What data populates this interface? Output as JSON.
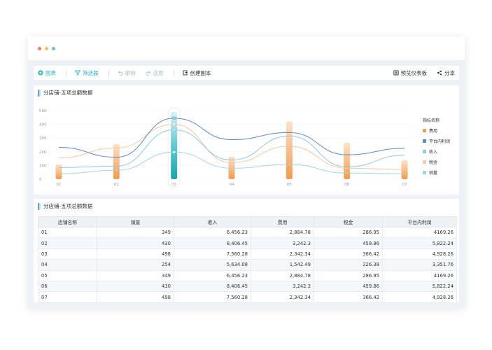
{
  "window": {
    "dot_colors": [
      "#f47a5a",
      "#f4c04e",
      "#5fc7c4"
    ]
  },
  "toolbar": {
    "chart_label": "图表",
    "filter_label": "筛选器",
    "undo_label": "撤销",
    "redo_label": "还原",
    "copy_label": "创建副本",
    "preview_label": "预览仪表板",
    "share_label": "分享",
    "accent_color": "#2bb3c0"
  },
  "chart_panel": {
    "title": "分店铺-五项总额数据"
  },
  "chart_data": {
    "type": "bar",
    "title": "分店铺-五项总额数据",
    "categories": [
      "01",
      "02",
      "03",
      "04",
      "05",
      "06",
      "07"
    ],
    "y_ticks": [
      "0",
      "100",
      "200",
      "300",
      "400",
      "500"
    ],
    "ylim": [
      0,
      500
    ],
    "highlighted_category": "03",
    "legend_title": "指标名称",
    "legend_position": "right",
    "grid": true,
    "series": [
      {
        "name": "费用",
        "type": "bar",
        "color": "#f5a057",
        "values": [
          110,
          258,
          490,
          165,
          420,
          265,
          140
        ]
      },
      {
        "name": "平台内利润",
        "type": "line",
        "color": "#5b8ac6",
        "values": [
          232,
          160,
          445,
          288,
          340,
          178,
          225
        ]
      },
      {
        "name": "收入",
        "type": "line",
        "color": "#8fc9ec",
        "values": [
          85,
          95,
          360,
          140,
          315,
          90,
          175
        ]
      },
      {
        "name": "税金",
        "type": "line",
        "color": "#f7c9a0",
        "values": [
          155,
          228,
          400,
          120,
          240,
          80,
          70
        ]
      },
      {
        "name": "销量",
        "type": "line",
        "color": "#9fd8df",
        "values": [
          40,
          65,
          198,
          80,
          108,
          45,
          40
        ]
      }
    ]
  },
  "table_panel": {
    "title": "分店铺-五项总额数据",
    "columns": [
      "店铺名称",
      "销量",
      "收入",
      "费用",
      "税金",
      "平台内利润"
    ],
    "rows": [
      [
        "01",
        "349",
        "6,456.23",
        "2,884.78",
        "286.95",
        "4169.26"
      ],
      [
        "02",
        "430",
        "8,406.45",
        "3,242.3",
        "459.86",
        "5,822.24"
      ],
      [
        "03",
        "498",
        "7,560.28",
        "2,342.34",
        "366.42",
        "4,928.26"
      ],
      [
        "04",
        "254",
        "5,634.08",
        "1,542.49",
        "226.38",
        "3,351.76"
      ],
      [
        "05",
        "349",
        "6,456.23",
        "2,884.78",
        "286.95",
        "4169.26"
      ],
      [
        "06",
        "430",
        "8,406.45",
        "3,242.3",
        "459.86",
        "5,822.24"
      ],
      [
        "07",
        "498",
        "7,560.28",
        "2,342.34",
        "366.42",
        "4,928.26"
      ]
    ]
  }
}
